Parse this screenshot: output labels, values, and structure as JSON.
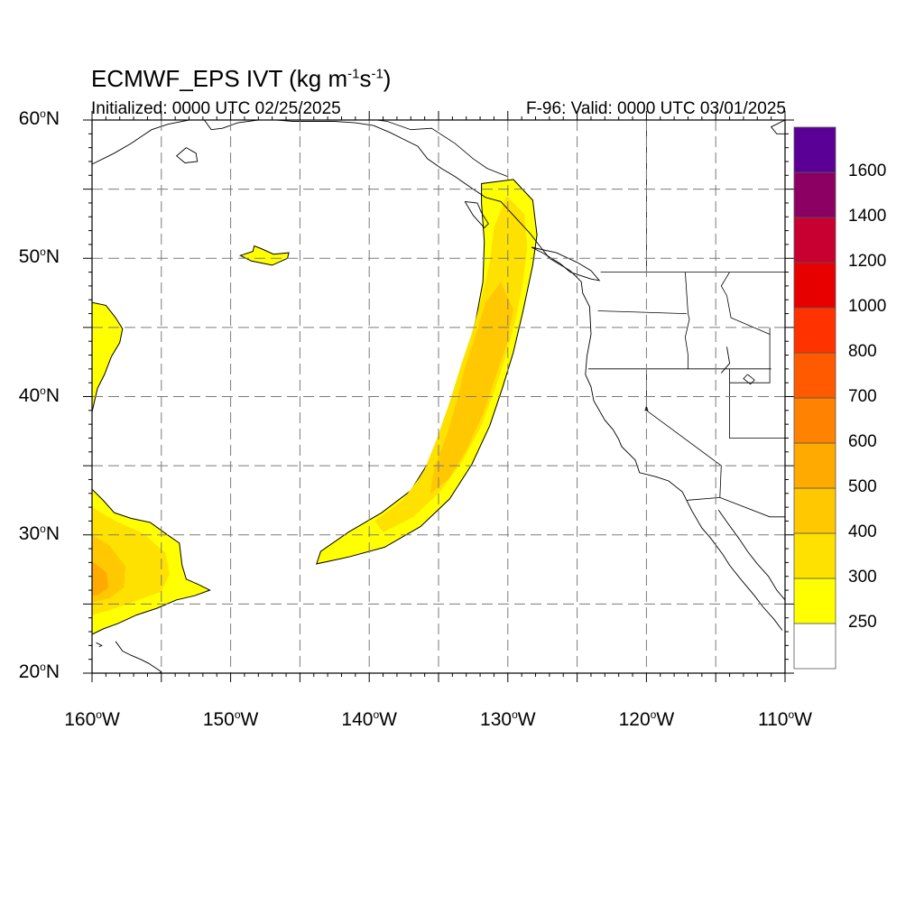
{
  "title": {
    "prefix": "ECMWF_EPS IVT (kg m",
    "sup1": "-1",
    "mid": "s",
    "sup2": "-1",
    "suffix": ")"
  },
  "initialized_label": "Initialized: 0000 UTC 02/25/2025",
  "valid_label": "F-96: Valid: 0000 UTC 03/01/2025",
  "map": {
    "lon_range": [
      -160,
      -110
    ],
    "lat_range": [
      20,
      60
    ],
    "grid_lons": [
      -155,
      -150,
      -145,
      -140,
      -135,
      -130,
      -125,
      -120,
      -115
    ],
    "grid_lats": [
      25,
      30,
      35,
      40,
      45,
      50,
      55
    ],
    "y_ticks": [
      {
        "lat": 60,
        "num": "60",
        "hemi": "N"
      },
      {
        "lat": 50,
        "num": "50",
        "hemi": "N"
      },
      {
        "lat": 40,
        "num": "40",
        "hemi": "N"
      },
      {
        "lat": 30,
        "num": "30",
        "hemi": "N"
      },
      {
        "lat": 20,
        "num": "20",
        "hemi": "N"
      }
    ],
    "x_ticks": [
      {
        "lon": -160,
        "num": "160",
        "hemi": "W"
      },
      {
        "lon": -150,
        "num": "150",
        "hemi": "W"
      },
      {
        "lon": -140,
        "num": "140",
        "hemi": "W"
      },
      {
        "lon": -130,
        "num": "130",
        "hemi": "W"
      },
      {
        "lon": -120,
        "num": "120",
        "hemi": "W"
      },
      {
        "lon": -110,
        "num": "110",
        "hemi": "W"
      }
    ]
  },
  "colorbar": {
    "levels": [
      250,
      300,
      400,
      500,
      600,
      700,
      800,
      1000,
      1200,
      1400,
      1600
    ],
    "labels": [
      "250",
      "300",
      "400",
      "500",
      "600",
      "700",
      "800",
      "1000",
      "1200",
      "1400",
      "1600"
    ],
    "colors": [
      "#ffffff",
      "#ffff00",
      "#ffe100",
      "#ffc800",
      "#ffaa00",
      "#ff8200",
      "#ff5a00",
      "#ff3200",
      "#e60000",
      "#c80032",
      "#8c0064",
      "#5a0096"
    ]
  },
  "ivt_regions": [
    {
      "name": "atmospheric-river",
      "level": 250,
      "poly": [
        [
          -129.6,
          55.7
        ],
        [
          -128.2,
          54.2
        ],
        [
          -127.9,
          51.7
        ],
        [
          -128.2,
          49.5
        ],
        [
          -128.9,
          46.2
        ],
        [
          -129.6,
          43.2
        ],
        [
          -130.4,
          40.6
        ],
        [
          -131.3,
          37.9
        ],
        [
          -132.6,
          35.1
        ],
        [
          -134.2,
          32.6
        ],
        [
          -136.3,
          30.6
        ],
        [
          -138.9,
          29.1
        ],
        [
          -141.5,
          28.4
        ],
        [
          -143.8,
          27.9
        ],
        [
          -143.5,
          28.8
        ],
        [
          -141.5,
          30.2
        ],
        [
          -139.1,
          31.6
        ],
        [
          -137.0,
          33.2
        ],
        [
          -135.5,
          35.6
        ],
        [
          -134.6,
          38.3
        ],
        [
          -133.7,
          40.8
        ],
        [
          -132.9,
          43.2
        ],
        [
          -132.3,
          45.6
        ],
        [
          -131.8,
          48.3
        ],
        [
          -131.7,
          51.2
        ],
        [
          -131.9,
          54.0
        ],
        [
          -131.9,
          55.4
        ]
      ]
    },
    {
      "name": "atmospheric-river",
      "level": 300,
      "poly": [
        [
          -130.1,
          54.5
        ],
        [
          -128.8,
          53.2
        ],
        [
          -128.6,
          50.8
        ],
        [
          -128.9,
          48.3
        ],
        [
          -129.4,
          45.7
        ],
        [
          -130.1,
          43.1
        ],
        [
          -130.9,
          40.6
        ],
        [
          -131.9,
          37.9
        ],
        [
          -133.3,
          35.3
        ],
        [
          -134.9,
          33.1
        ],
        [
          -136.8,
          31.3
        ],
        [
          -139.0,
          30.2
        ],
        [
          -139.6,
          31.0
        ],
        [
          -137.6,
          32.5
        ],
        [
          -136.1,
          34.5
        ],
        [
          -135.1,
          37.0
        ],
        [
          -134.2,
          39.6
        ],
        [
          -133.4,
          42.2
        ],
        [
          -132.6,
          44.6
        ],
        [
          -131.9,
          47.1
        ],
        [
          -131.3,
          49.7
        ],
        [
          -131.0,
          52.2
        ]
      ]
    },
    {
      "name": "atmospheric-river",
      "level": 400,
      "poly": [
        [
          -130.5,
          48.3
        ],
        [
          -129.6,
          46.3
        ],
        [
          -130.1,
          43.7
        ],
        [
          -130.9,
          41.4
        ],
        [
          -131.8,
          38.7
        ],
        [
          -133.0,
          36.1
        ],
        [
          -134.3,
          34.0
        ],
        [
          -135.6,
          33.0
        ],
        [
          -135.3,
          34.9
        ],
        [
          -134.4,
          37.2
        ],
        [
          -133.7,
          39.6
        ],
        [
          -133.1,
          42.1
        ],
        [
          -132.3,
          44.5
        ],
        [
          -131.6,
          46.8
        ]
      ]
    },
    {
      "name": "pacific-high-blob",
      "level": 250,
      "poly": [
        [
          -160,
          33.3
        ],
        [
          -159.2,
          32.5
        ],
        [
          -158.4,
          31.6
        ],
        [
          -157.2,
          31.2
        ],
        [
          -155.8,
          30.9
        ],
        [
          -154.7,
          30.1
        ],
        [
          -153.7,
          29.4
        ],
        [
          -153.5,
          27.8
        ],
        [
          -153.2,
          26.8
        ],
        [
          -152.3,
          26.4
        ],
        [
          -151.5,
          26.0
        ],
        [
          -152.6,
          25.6
        ],
        [
          -153.9,
          25.3
        ],
        [
          -155.3,
          24.7
        ],
        [
          -156.8,
          24.2
        ],
        [
          -158.1,
          23.6
        ],
        [
          -159.2,
          23.2
        ],
        [
          -160,
          22.8
        ]
      ]
    },
    {
      "name": "pacific-high-blob",
      "level": 300,
      "poly": [
        [
          -160,
          32.0
        ],
        [
          -158.3,
          31.0
        ],
        [
          -156.3,
          30.1
        ],
        [
          -154.7,
          28.7
        ],
        [
          -154.4,
          27.2
        ],
        [
          -155.0,
          25.9
        ],
        [
          -156.9,
          25.2
        ],
        [
          -158.9,
          24.5
        ],
        [
          -160,
          24.2
        ]
      ]
    },
    {
      "name": "pacific-high-blob",
      "level": 400,
      "poly": [
        [
          -160,
          30.0
        ],
        [
          -158.7,
          29.2
        ],
        [
          -157.6,
          27.7
        ],
        [
          -157.7,
          26.2
        ],
        [
          -158.8,
          25.4
        ],
        [
          -160,
          25.1
        ]
      ]
    },
    {
      "name": "pacific-high-blob",
      "level": 500,
      "poly": [
        [
          -160,
          28.1
        ],
        [
          -159.0,
          27.3
        ],
        [
          -158.8,
          26.2
        ],
        [
          -159.5,
          25.7
        ],
        [
          -160,
          25.6
        ]
      ]
    },
    {
      "name": "west-edge-streak",
      "level": 250,
      "poly": [
        [
          -160,
          46.8
        ],
        [
          -159.0,
          46.6
        ],
        [
          -158.3,
          45.7
        ],
        [
          -157.8,
          44.9
        ],
        [
          -158.0,
          43.9
        ],
        [
          -158.6,
          42.9
        ],
        [
          -159.1,
          41.6
        ],
        [
          -159.6,
          40.6
        ],
        [
          -160,
          38.9
        ]
      ]
    },
    {
      "name": "small-patch",
      "level": 250,
      "poly": [
        [
          -149.3,
          50.2
        ],
        [
          -148.4,
          50.5
        ],
        [
          -148.3,
          50.9
        ],
        [
          -147.8,
          50.7
        ],
        [
          -146.9,
          50.3
        ],
        [
          -145.8,
          50.4
        ],
        [
          -145.9,
          50.0
        ],
        [
          -147.0,
          49.5
        ],
        [
          -148.5,
          49.8
        ]
      ]
    }
  ],
  "coastlines": [
    [
      [
        -110.0,
        60.0
      ],
      [
        -111.0,
        59.5
      ],
      [
        -110.6,
        59.0
      ],
      [
        -110.0,
        59.0
      ]
    ],
    [
      [
        -160.0,
        56.8
      ],
      [
        -158.4,
        57.6
      ],
      [
        -157.2,
        58.3
      ],
      [
        -156.3,
        58.9
      ],
      [
        -155.7,
        59.3
      ],
      [
        -154.5,
        59.7
      ],
      [
        -153.0,
        60.0
      ]
    ],
    [
      [
        -151.9,
        60.0
      ],
      [
        -151.4,
        59.3
      ],
      [
        -150.6,
        59.4
      ],
      [
        -149.5,
        59.8
      ],
      [
        -148.0,
        60.0
      ]
    ],
    [
      [
        -153.2,
        58.0
      ],
      [
        -152.5,
        57.6
      ],
      [
        -152.4,
        57.0
      ],
      [
        -153.3,
        56.9
      ],
      [
        -153.9,
        57.4
      ],
      [
        -153.2,
        58.0
      ]
    ],
    [
      [
        -146.7,
        60.0
      ],
      [
        -145.5,
        59.9
      ],
      [
        -144.0,
        59.9
      ],
      [
        -142.5,
        59.9
      ],
      [
        -141.0,
        59.8
      ],
      [
        -139.7,
        59.6
      ],
      [
        -138.5,
        59.1
      ],
      [
        -137.5,
        58.6
      ],
      [
        -136.5,
        58.1
      ],
      [
        -135.8,
        57.2
      ],
      [
        -134.8,
        56.5
      ],
      [
        -133.8,
        55.9
      ],
      [
        -132.5,
        55.0
      ],
      [
        -131.6,
        54.4
      ],
      [
        -130.5,
        54.1
      ],
      [
        -129.5,
        53.0
      ],
      [
        -128.4,
        51.8
      ],
      [
        -127.7,
        50.9
      ],
      [
        -127.0,
        50.0
      ],
      [
        -125.5,
        49.1
      ],
      [
        -124.7,
        48.3
      ],
      [
        -124.6,
        47.5
      ],
      [
        -124.1,
        46.5
      ],
      [
        -124.0,
        44.5
      ],
      [
        -124.3,
        42.9
      ],
      [
        -124.4,
        41.6
      ],
      [
        -124.0,
        40.7
      ],
      [
        -123.8,
        39.7
      ],
      [
        -123.0,
        38.3
      ],
      [
        -122.4,
        37.6
      ],
      [
        -122.0,
        36.9
      ],
      [
        -121.8,
        36.4
      ],
      [
        -120.8,
        35.4
      ],
      [
        -120.5,
        34.5
      ],
      [
        -119.3,
        34.2
      ],
      [
        -118.4,
        33.9
      ],
      [
        -117.4,
        33.1
      ],
      [
        -117.1,
        32.5
      ],
      [
        -116.7,
        31.7
      ],
      [
        -116.0,
        30.5
      ],
      [
        -115.4,
        29.8
      ],
      [
        -114.5,
        28.6
      ],
      [
        -114.0,
        27.8
      ],
      [
        -113.2,
        26.8
      ],
      [
        -112.2,
        25.6
      ],
      [
        -111.6,
        24.8
      ],
      [
        -110.8,
        23.9
      ],
      [
        -110.2,
        23.1
      ]
    ],
    [
      [
        -114.8,
        31.8
      ],
      [
        -114.1,
        30.8
      ],
      [
        -113.3,
        29.7
      ],
      [
        -112.7,
        28.8
      ],
      [
        -112.0,
        27.9
      ],
      [
        -111.2,
        27.0
      ],
      [
        -110.6,
        26.0
      ],
      [
        -110.0,
        25.3
      ]
    ],
    [
      [
        -133.1,
        54.1
      ],
      [
        -132.2,
        54.0
      ],
      [
        -131.9,
        53.3
      ],
      [
        -131.4,
        52.5
      ],
      [
        -131.7,
        52.2
      ],
      [
        -132.5,
        53.1
      ],
      [
        -133.1,
        54.1
      ]
    ],
    [
      [
        -128.3,
        50.8
      ],
      [
        -127.5,
        50.4
      ],
      [
        -126.2,
        49.6
      ],
      [
        -125.5,
        49.0
      ],
      [
        -124.0,
        48.5
      ],
      [
        -123.4,
        48.4
      ],
      [
        -124.0,
        49.1
      ],
      [
        -125.0,
        49.7
      ],
      [
        -126.5,
        50.4
      ],
      [
        -128.3,
        50.8
      ]
    ],
    [
      [
        -158.3,
        22.3
      ],
      [
        -157.8,
        21.6
      ],
      [
        -157.2,
        21.3
      ],
      [
        -156.5,
        21.0
      ],
      [
        -155.9,
        20.7
      ],
      [
        -155.0,
        20.1
      ],
      [
        -155.5,
        19.8
      ]
    ],
    [
      [
        -159.7,
        22.2
      ],
      [
        -159.3,
        22.0
      ],
      [
        -159.5,
        21.9
      ]
    ],
    [
      [
        -114.2,
        43.6
      ],
      [
        -114.0,
        42.4
      ],
      [
        -114.6,
        41.7
      ]
    ]
  ],
  "borders": [
    [
      [
        -130.0,
        55.9
      ],
      [
        -131.5,
        56.5
      ],
      [
        -132.5,
        57.2
      ],
      [
        -133.8,
        58.3
      ],
      [
        -135.5,
        59.4
      ],
      [
        -137.0,
        59.3
      ],
      [
        -138.7,
        59.9
      ],
      [
        -139.5,
        60.0
      ]
    ],
    [
      [
        -123.3,
        49.0
      ],
      [
        -117.0,
        49.0
      ],
      [
        -110.0,
        49.0
      ]
    ],
    [
      [
        -120.0,
        60.0
      ],
      [
        -120.0,
        49.0
      ]
    ],
    [
      [
        -124.2,
        42.0
      ],
      [
        -120.0,
        42.0
      ],
      [
        -111.0,
        42.0
      ]
    ],
    [
      [
        -120.0,
        42.0
      ],
      [
        -120.0,
        39.0
      ],
      [
        -114.6,
        35.0
      ],
      [
        -114.7,
        32.7
      ],
      [
        -117.1,
        32.5
      ]
    ],
    [
      [
        -117.2,
        49.0
      ],
      [
        -117.0,
        46.0
      ],
      [
        -116.9,
        45.6
      ],
      [
        -117.2,
        44.3
      ],
      [
        -117.0,
        43.0
      ],
      [
        -117.0,
        42.0
      ]
    ],
    [
      [
        -117.1,
        46.0
      ],
      [
        -123.5,
        46.2
      ]
    ],
    [
      [
        -114.0,
        49.0
      ],
      [
        -114.6,
        48.0
      ],
      [
        -114.2,
        47.3
      ],
      [
        -113.9,
        45.7
      ],
      [
        -111.1,
        44.5
      ]
    ],
    [
      [
        -111.1,
        45.0
      ],
      [
        -111.1,
        44.5
      ],
      [
        -111.1,
        42.0
      ],
      [
        -111.1,
        41.0
      ],
      [
        -114.0,
        41.0
      ]
    ],
    [
      [
        -114.0,
        42.0
      ],
      [
        -114.0,
        37.0
      ],
      [
        -110.0,
        37.0
      ]
    ],
    [
      [
        -114.7,
        32.7
      ],
      [
        -111.1,
        31.3
      ],
      [
        -110.0,
        31.3
      ]
    ]
  ],
  "lakes": [
    [
      [
        -112.7,
        41.6
      ],
      [
        -112.2,
        41.2
      ],
      [
        -112.5,
        40.9
      ],
      [
        -113.0,
        41.3
      ],
      [
        -112.7,
        41.6
      ]
    ],
    [
      [
        -120.0,
        39.3
      ],
      [
        -119.9,
        39.0
      ],
      [
        -120.1,
        39.0
      ],
      [
        -120.0,
        39.3
      ]
    ]
  ]
}
